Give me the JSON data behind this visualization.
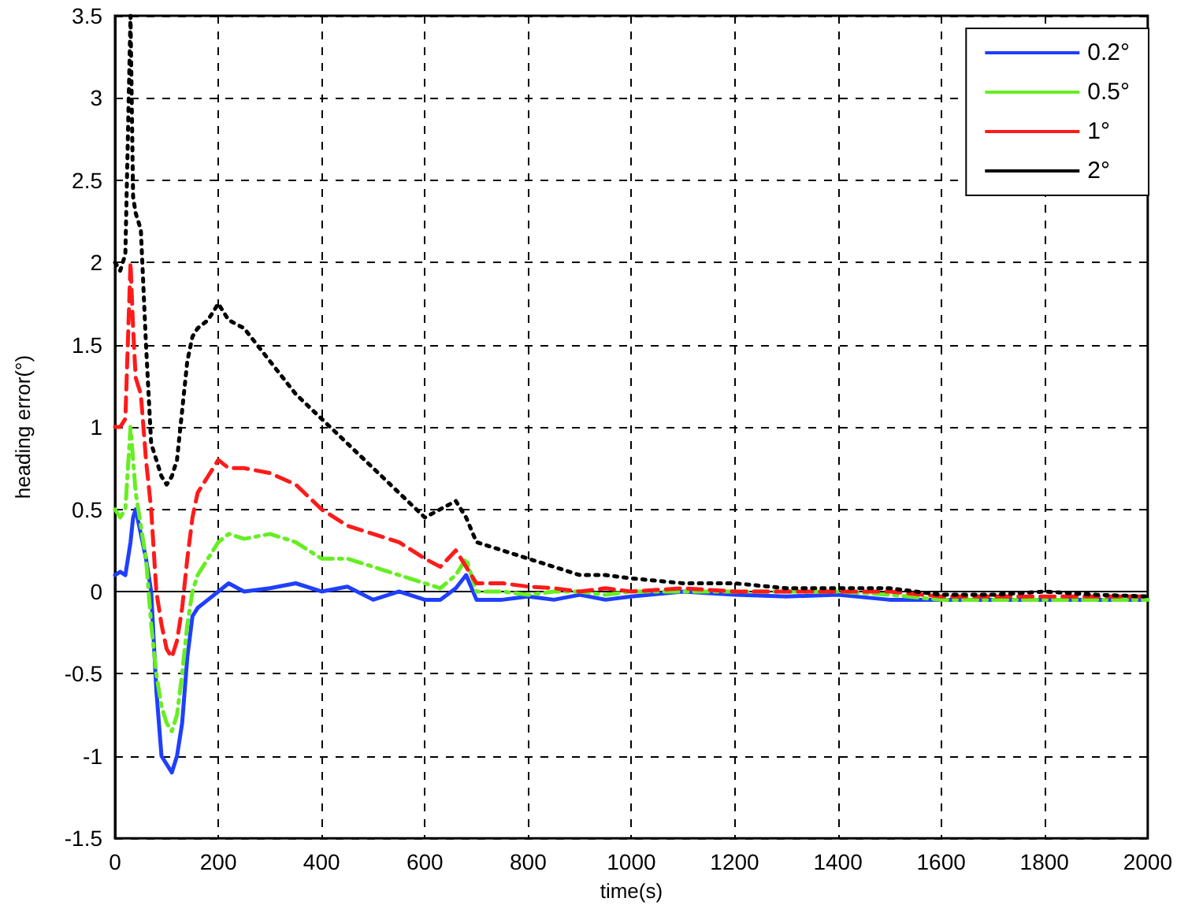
{
  "chart_data": {
    "type": "line",
    "xlabel": "time(s)",
    "ylabel": "heading error(°)",
    "x": [
      0,
      10,
      20,
      30,
      35,
      40,
      50,
      60,
      70,
      80,
      90,
      100,
      110,
      120,
      130,
      140,
      150,
      160,
      180,
      200,
      220,
      250,
      300,
      350,
      400,
      450,
      500,
      550,
      600,
      630,
      660,
      680,
      700,
      750,
      800,
      850,
      900,
      950,
      1000,
      1100,
      1200,
      1300,
      1400,
      1500,
      1600,
      1700,
      1800,
      1900,
      2000
    ],
    "series": [
      {
        "name": "0.2°",
        "color": "#1f3fff",
        "line_style": "solid",
        "values": [
          0.1,
          0.12,
          0.1,
          0.3,
          0.45,
          0.5,
          0.35,
          0.2,
          0,
          -0.6,
          -1.0,
          -1.05,
          -1.1,
          -1.0,
          -0.8,
          -0.4,
          -0.15,
          -0.1,
          -0.05,
          0,
          0.05,
          0,
          0.02,
          0.05,
          0,
          0.03,
          -0.05,
          0,
          -0.05,
          -0.05,
          0.02,
          0.1,
          -0.05,
          -0.05,
          -0.03,
          -0.05,
          -0.02,
          -0.05,
          -0.03,
          0,
          -0.02,
          -0.03,
          -0.02,
          -0.05,
          -0.05,
          -0.05,
          -0.05,
          -0.05,
          -0.05
        ]
      },
      {
        "name": "0.5°",
        "color": "#66ee22",
        "line_style": "dashdot",
        "values": [
          0.5,
          0.45,
          0.5,
          1.0,
          0.8,
          0.6,
          0.4,
          0.2,
          -0.2,
          -0.5,
          -0.7,
          -0.8,
          -0.85,
          -0.75,
          -0.5,
          -0.2,
          0,
          0.1,
          0.2,
          0.3,
          0.35,
          0.32,
          0.35,
          0.3,
          0.2,
          0.2,
          0.15,
          0.1,
          0.05,
          0.02,
          0.1,
          0.2,
          0,
          0,
          -0.02,
          0,
          0,
          -0.02,
          0,
          0,
          0,
          0,
          0,
          -0.02,
          -0.05,
          -0.05,
          -0.05,
          -0.05,
          -0.05
        ]
      },
      {
        "name": "1°",
        "color": "#ff1a1a",
        "line_style": "dashed",
        "values": [
          1.0,
          1.0,
          1.05,
          2.0,
          1.6,
          1.3,
          1.2,
          0.8,
          0.5,
          0,
          -0.2,
          -0.35,
          -0.4,
          -0.3,
          -0.1,
          0.2,
          0.45,
          0.6,
          0.7,
          0.8,
          0.75,
          0.75,
          0.72,
          0.65,
          0.5,
          0.4,
          0.35,
          0.3,
          0.2,
          0.15,
          0.25,
          0.15,
          0.05,
          0.05,
          0.03,
          0.02,
          0,
          0.02,
          0,
          0.02,
          0,
          0,
          0,
          0,
          -0.03,
          -0.03,
          -0.03,
          -0.03,
          -0.03
        ]
      },
      {
        "name": "2°",
        "color": "#000000",
        "line_style": "dotted",
        "values": [
          2.0,
          1.95,
          2.05,
          3.5,
          2.4,
          2.3,
          2.2,
          1.5,
          0.9,
          0.8,
          0.7,
          0.65,
          0.7,
          0.8,
          1.1,
          1.4,
          1.55,
          1.6,
          1.65,
          1.75,
          1.65,
          1.6,
          1.4,
          1.2,
          1.05,
          0.9,
          0.75,
          0.6,
          0.45,
          0.5,
          0.55,
          0.45,
          0.3,
          0.25,
          0.2,
          0.15,
          0.1,
          0.1,
          0.08,
          0.05,
          0.05,
          0.02,
          0.02,
          0.02,
          -0.02,
          -0.02,
          0,
          -0.02,
          -0.03
        ]
      }
    ],
    "xlim": [
      0,
      2000
    ],
    "xticks": [
      0,
      200,
      400,
      600,
      800,
      1000,
      1200,
      1400,
      1600,
      1800,
      2000
    ],
    "ylim": [
      -1.5,
      3.5
    ],
    "yticks": [
      -1.5,
      -1,
      -0.5,
      0,
      0.5,
      1,
      1.5,
      2,
      2.5,
      3,
      3.5
    ],
    "grid": true,
    "legend": "top right",
    "marker": "none"
  }
}
